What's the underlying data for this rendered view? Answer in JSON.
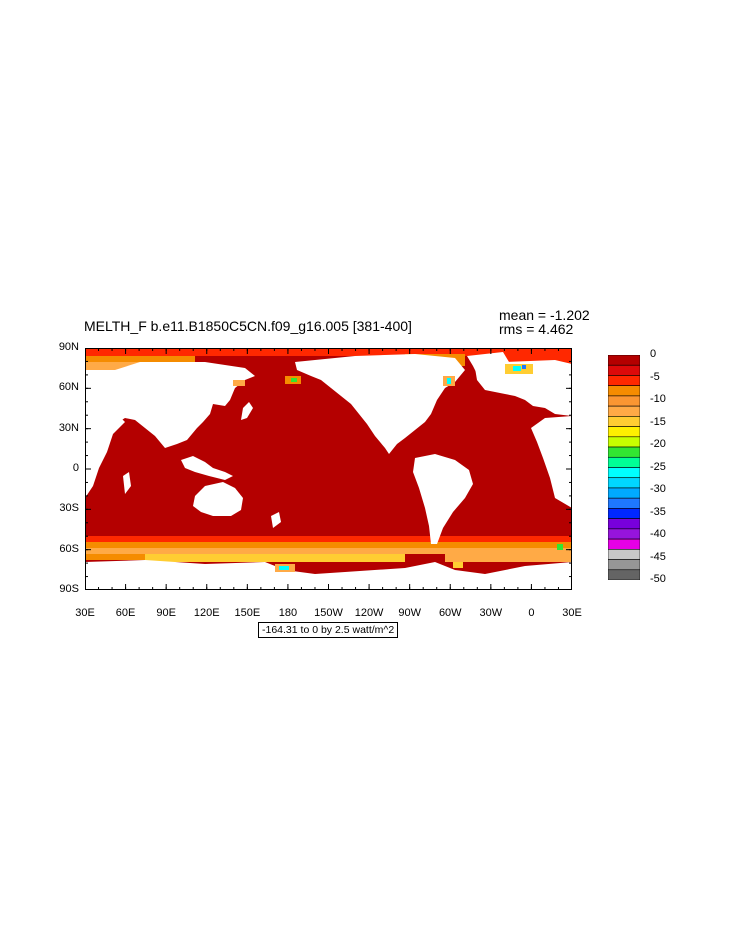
{
  "plot": {
    "title": "MELTH_F b.e11.B1850C5CN.f09_g16.005 [381-400]",
    "mean_text": "mean = -1.202",
    "rms_text": "rms = 4.462",
    "range_text": "-164.31 to 0 by 2.5 watt/m^2"
  },
  "axes": {
    "y_ticks": [
      "90N",
      "60N",
      "30N",
      "0",
      "30S",
      "60S",
      "90S"
    ],
    "x_ticks": [
      "30E",
      "60E",
      "90E",
      "120E",
      "150E",
      "180",
      "150W",
      "120W",
      "90W",
      "60W",
      "30W",
      "0",
      "30E"
    ]
  },
  "colorbar": {
    "labels": [
      "0",
      "-5",
      "-10",
      "-15",
      "-20",
      "-25",
      "-30",
      "-35",
      "-40",
      "-45",
      "-50"
    ],
    "colors": [
      "#b40000",
      "#dc0a0a",
      "#ff2800",
      "#f58c00",
      "#fa9632",
      "#ffaa46",
      "#ffcd32",
      "#fff000",
      "#c8ff00",
      "#32e632",
      "#00ff96",
      "#00ffff",
      "#00d7ff",
      "#00aaff",
      "#1e78ff",
      "#0028ff",
      "#7800dc",
      "#9614dc",
      "#e600e6",
      "#c8c8c8",
      "#969696",
      "#646464"
    ]
  },
  "map_colors": {
    "ocean": "#b40000",
    "land": "#ffffff",
    "ice_edge_1": "#ff2800",
    "ice_edge_2": "#f58c00",
    "ice_edge_3": "#ffaa46",
    "ice_edge_4": "#ffcd32",
    "hotspot_1": "#00ffff",
    "hotspot_2": "#1e78ff",
    "hotspot_3": "#32e632"
  }
}
